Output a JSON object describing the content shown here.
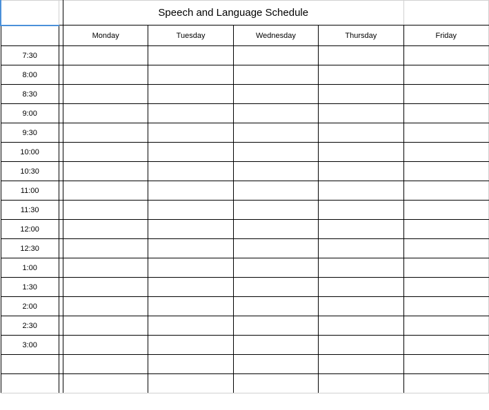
{
  "title": "Speech and Language Schedule",
  "columns": [
    "Monday",
    "Tuesday",
    "Wednesday",
    "Thursday",
    "Friday"
  ],
  "times": [
    "7:30",
    "8:00",
    "8:30",
    "9:00",
    "9:30",
    "10:00",
    "10:30",
    "11:00",
    "11:30",
    "12:00",
    "12:30",
    "1:00",
    "1:30",
    "2:00",
    "2:30",
    "3:00"
  ],
  "cells": [
    [
      "",
      "",
      "",
      "",
      ""
    ],
    [
      "",
      "",
      "",
      "",
      ""
    ],
    [
      "",
      "",
      "",
      "",
      ""
    ],
    [
      "",
      "",
      "",
      "",
      ""
    ],
    [
      "",
      "",
      "",
      "",
      ""
    ],
    [
      "",
      "",
      "",
      "",
      ""
    ],
    [
      "",
      "",
      "",
      "",
      ""
    ],
    [
      "",
      "",
      "",
      "",
      ""
    ],
    [
      "",
      "",
      "",
      "",
      ""
    ],
    [
      "",
      "",
      "",
      "",
      ""
    ],
    [
      "",
      "",
      "",
      "",
      ""
    ],
    [
      "",
      "",
      "",
      "",
      ""
    ],
    [
      "",
      "",
      "",
      "",
      ""
    ],
    [
      "",
      "",
      "",
      "",
      ""
    ],
    [
      "",
      "",
      "",
      "",
      ""
    ],
    [
      "",
      "",
      "",
      "",
      ""
    ]
  ],
  "table": {
    "type": "table",
    "border_color": "#000000",
    "light_border_color": "#d0d0d0",
    "selected_cell_border_color": "#4a90d9",
    "background_color": "#ffffff",
    "title_fontsize": 15,
    "header_fontsize": 11,
    "time_fontsize": 11,
    "time_col_width": 82,
    "spacer_col_width": 6,
    "day_col_width": 120,
    "title_row_height": 36,
    "header_row_height": 30,
    "data_row_height": 28,
    "extra_rows": 2
  }
}
